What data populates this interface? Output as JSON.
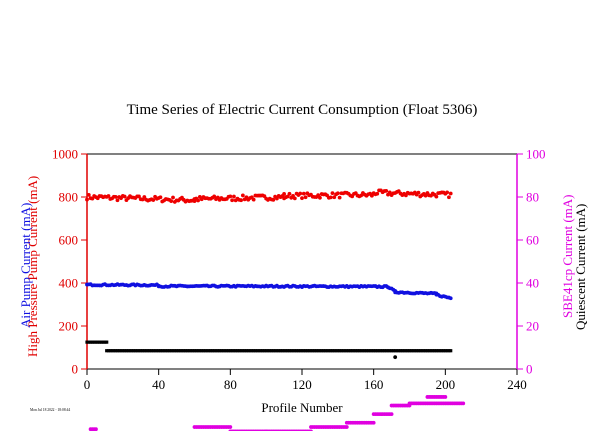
{
  "chart_data": {
    "type": "scatter",
    "title": "Time Series of Electric Current Consumption (Float 5306)",
    "xlabel": "Profile Number",
    "xlim": [
      0,
      240
    ],
    "x_ticks": [
      "0",
      "40",
      "80",
      "120",
      "160",
      "200",
      "240"
    ],
    "left_axis": {
      "labels": [
        "High Pressure Pump Current (mA)",
        "Air Pump Current (mA)"
      ],
      "label_colors": [
        "#e00000",
        "#1010e0"
      ],
      "ylim": [
        0,
        1000
      ],
      "ticks": [
        "0",
        "200",
        "400",
        "600",
        "800",
        "1000"
      ],
      "color": "#e00000"
    },
    "right_axis": {
      "labels": [
        "SBE41cp Current (mA)",
        "Quiescent Current (mA)"
      ],
      "label_colors": [
        "#e000e0",
        "#000000"
      ],
      "ylim": [
        0,
        100
      ],
      "ticks": [
        "0",
        "20",
        "40",
        "60",
        "80",
        "100"
      ],
      "color": "#e000e0"
    },
    "footnote": "Mon Jul 18 2022 - 18:08:44",
    "series": [
      {
        "key": "high_pressure_pump",
        "color": "#ee0000",
        "axis": "left",
        "marker": "circle",
        "segments": [
          {
            "x": [
              0,
              60
            ],
            "y": [
              800,
              785
            ]
          },
          {
            "x": [
              60,
              110
            ],
            "y": [
              790,
              800
            ]
          },
          {
            "x": [
              110,
              160
            ],
            "y": [
              805,
              810
            ]
          },
          {
            "x": [
              160,
              203
            ],
            "y": [
              820,
              810
            ]
          }
        ]
      },
      {
        "key": "air_pump",
        "color": "#1010e0",
        "axis": "left",
        "marker": "circle",
        "segments": [
          {
            "x": [
              0,
              40
            ],
            "y": [
              392,
              390
            ]
          },
          {
            "x": [
              40,
              100
            ],
            "y": [
              385,
              385
            ]
          },
          {
            "x": [
              100,
              168
            ],
            "y": [
              385,
              383
            ]
          },
          {
            "x": [
              168,
              172
            ],
            "y": [
              383,
              360
            ]
          },
          {
            "x": [
              172,
              195
            ],
            "y": [
              358,
              350
            ]
          },
          {
            "x": [
              195,
              203
            ],
            "y": [
              345,
              330
            ]
          }
        ]
      },
      {
        "key": "quiescent",
        "color": "#000000",
        "axis": "right",
        "marker": "square",
        "segments": [
          {
            "x": [
              0,
              11
            ],
            "y": [
              12.5,
              12.5
            ]
          },
          {
            "x": [
              11,
              203
            ],
            "y": [
              8.5,
              8.5
            ]
          }
        ],
        "outliers": [
          {
            "x": 172,
            "y": 5.5
          }
        ]
      },
      {
        "key": "sbe41cp",
        "color": "#e000e0",
        "axis": "right",
        "marker": "circle",
        "segments": [
          {
            "x": [
              2,
              5
            ],
            "y": [
              -28,
              -28
            ]
          },
          {
            "x": [
              5,
              60
            ],
            "y": [
              -30,
              -30
            ]
          },
          {
            "x": [
              60,
              80
            ],
            "y": [
              -27,
              -27
            ]
          },
          {
            "x": [
              80,
              100
            ],
            "y": [
              -29,
              -29
            ]
          },
          {
            "x": [
              100,
              125
            ],
            "y": [
              -29,
              -29
            ]
          },
          {
            "x": [
              125,
              145
            ],
            "y": [
              -27,
              -27
            ]
          },
          {
            "x": [
              145,
              160
            ],
            "y": [
              -25,
              -25
            ]
          },
          {
            "x": [
              160,
              170
            ],
            "y": [
              -21,
              -21
            ]
          },
          {
            "x": [
              170,
              180
            ],
            "y": [
              -17,
              -17
            ]
          },
          {
            "x": [
              180,
              210
            ],
            "y": [
              -16,
              -16
            ]
          },
          {
            "x": [
              190,
              200
            ],
            "y": [
              -13,
              -13
            ]
          }
        ]
      }
    ]
  }
}
